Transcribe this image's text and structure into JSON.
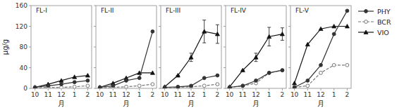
{
  "chart_data": [
    {
      "type": "line",
      "title": "FL-I",
      "x_label": "月",
      "y_label": "μg/g",
      "categories": [
        "10",
        "11",
        "12",
        "1",
        "2"
      ],
      "ylim": [
        0,
        160
      ],
      "yticks": [
        0,
        40,
        80,
        120,
        160
      ],
      "grid": false,
      "legend": "right",
      "series": [
        {
          "name": "PHY",
          "color": "#333333",
          "marker": "circle",
          "line_style": "solid",
          "values": [
            2,
            5,
            8,
            12,
            15
          ]
        },
        {
          "name": "BCR",
          "color": "#777777",
          "marker": "open-circle",
          "line_style": "dashed",
          "values": [
            1,
            2,
            2,
            3,
            5
          ]
        },
        {
          "name": "VIO",
          "color": "#111111",
          "marker": "triangle",
          "line_style": "solid",
          "values": [
            2,
            8,
            15,
            22,
            25
          ]
        }
      ]
    },
    {
      "type": "line",
      "title": "FL-II",
      "x_label": "月",
      "tick_labels": "x",
      "categories": [
        "10",
        "11",
        "12",
        "1",
        "2"
      ],
      "ylim": [
        0,
        160
      ],
      "yticks": [
        0,
        40,
        80,
        120,
        160
      ],
      "grid": false,
      "series": [
        {
          "name": "PHY",
          "color": "#333333",
          "marker": "circle",
          "line_style": "solid",
          "values": [
            2,
            5,
            15,
            20,
            110
          ]
        },
        {
          "name": "BCR",
          "color": "#777777",
          "marker": "open-circle",
          "line_style": "dashed",
          "values": [
            1,
            2,
            3,
            5,
            8
          ]
        },
        {
          "name": "VIO",
          "color": "#111111",
          "marker": "triangle",
          "line_style": "solid",
          "values": [
            2,
            10,
            20,
            30,
            30
          ]
        }
      ]
    },
    {
      "type": "line",
      "title": "FL-III",
      "x_label": "月",
      "tick_labels": "x",
      "categories": [
        "10",
        "11",
        "12",
        "1",
        "2"
      ],
      "ylim": [
        0,
        160
      ],
      "yticks": [
        0,
        40,
        80,
        120,
        160
      ],
      "grid": false,
      "series": [
        {
          "name": "PHY",
          "color": "#333333",
          "marker": "circle",
          "line_style": "solid",
          "values": [
            2,
            3,
            5,
            20,
            25
          ]
        },
        {
          "name": "BCR",
          "color": "#777777",
          "marker": "open-circle",
          "line_style": "dashed",
          "values": [
            1,
            2,
            3,
            5,
            8
          ]
        },
        {
          "name": "VIO",
          "color": "#111111",
          "marker": "triangle",
          "line_style": "solid",
          "values": [
            3,
            25,
            60,
            110,
            105
          ],
          "errors": [
            0,
            0,
            8,
            22,
            18
          ]
        }
      ]
    },
    {
      "type": "line",
      "title": "FL-IV",
      "x_label": "月",
      "tick_labels": "x",
      "categories": [
        "10",
        "11",
        "12",
        "1",
        "2"
      ],
      "ylim": [
        0,
        160
      ],
      "yticks": [
        0,
        40,
        80,
        120,
        160
      ],
      "grid": false,
      "series": [
        {
          "name": "PHY",
          "color": "#333333",
          "marker": "circle",
          "line_style": "solid",
          "values": [
            2,
            5,
            15,
            30,
            35
          ]
        },
        {
          "name": "BCR",
          "color": "#777777",
          "marker": "open-circle",
          "line_style": "dashed",
          "values": [
            2,
            5,
            10,
            30,
            35
          ]
        },
        {
          "name": "VIO",
          "color": "#111111",
          "marker": "triangle",
          "line_style": "solid",
          "values": [
            3,
            35,
            60,
            100,
            105
          ],
          "errors": [
            0,
            0,
            8,
            18,
            12
          ]
        }
      ]
    },
    {
      "type": "line",
      "title": "FL-V",
      "x_label": "月",
      "tick_labels": "x",
      "categories": [
        "10",
        "11",
        "12",
        "1",
        "2"
      ],
      "ylim": [
        0,
        160
      ],
      "yticks": [
        0,
        40,
        80,
        120,
        160
      ],
      "grid": false,
      "series": [
        {
          "name": "PHY",
          "color": "#333333",
          "marker": "circle",
          "line_style": "solid",
          "values": [
            2,
            15,
            45,
            105,
            150
          ]
        },
        {
          "name": "BCR",
          "color": "#777777",
          "marker": "open-circle",
          "line_style": "dashed",
          "values": [
            2,
            5,
            30,
            45,
            45
          ]
        },
        {
          "name": "VIO",
          "color": "#111111",
          "marker": "triangle",
          "line_style": "solid",
          "values": [
            10,
            85,
            115,
            120,
            120
          ]
        }
      ]
    }
  ]
}
